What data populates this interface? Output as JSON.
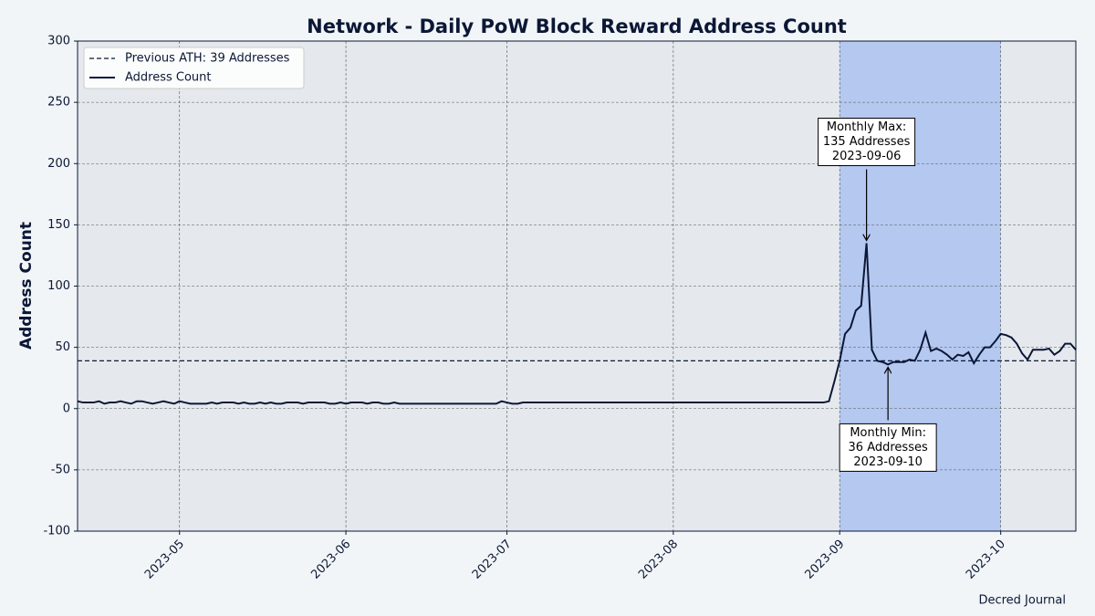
{
  "chart_data": {
    "type": "line",
    "title": "Network - Daily PoW Block Reward Address Count",
    "ylabel": "Address Count",
    "footer": "Decred Journal",
    "x": [
      "2023-04-12",
      "2023-04-13",
      "2023-04-14",
      "2023-04-15",
      "2023-04-16",
      "2023-04-17",
      "2023-04-18",
      "2023-04-19",
      "2023-04-20",
      "2023-04-21",
      "2023-04-22",
      "2023-04-23",
      "2023-04-24",
      "2023-04-25",
      "2023-04-26",
      "2023-04-27",
      "2023-04-28",
      "2023-04-29",
      "2023-04-30",
      "2023-05-01",
      "2023-05-02",
      "2023-05-03",
      "2023-05-04",
      "2023-05-05",
      "2023-05-06",
      "2023-05-07",
      "2023-05-08",
      "2023-05-09",
      "2023-05-10",
      "2023-05-11",
      "2023-05-12",
      "2023-05-13",
      "2023-05-14",
      "2023-05-15",
      "2023-05-16",
      "2023-05-17",
      "2023-05-18",
      "2023-05-19",
      "2023-05-20",
      "2023-05-21",
      "2023-05-22",
      "2023-05-23",
      "2023-05-24",
      "2023-05-25",
      "2023-05-26",
      "2023-05-27",
      "2023-05-28",
      "2023-05-29",
      "2023-05-30",
      "2023-05-31",
      "2023-06-01",
      "2023-06-02",
      "2023-06-03",
      "2023-06-04",
      "2023-06-05",
      "2023-06-06",
      "2023-06-07",
      "2023-06-08",
      "2023-06-09",
      "2023-06-10",
      "2023-06-11",
      "2023-06-12",
      "2023-06-13",
      "2023-06-14",
      "2023-06-15",
      "2023-06-16",
      "2023-06-17",
      "2023-06-18",
      "2023-06-19",
      "2023-06-20",
      "2023-06-21",
      "2023-06-22",
      "2023-06-23",
      "2023-06-24",
      "2023-06-25",
      "2023-06-26",
      "2023-06-27",
      "2023-06-28",
      "2023-06-29",
      "2023-06-30",
      "2023-07-01",
      "2023-07-02",
      "2023-07-03",
      "2023-07-04",
      "2023-07-05",
      "2023-07-06",
      "2023-07-07",
      "2023-07-08",
      "2023-07-09",
      "2023-07-10",
      "2023-07-11",
      "2023-07-12",
      "2023-07-13",
      "2023-07-14",
      "2023-07-15",
      "2023-07-16",
      "2023-07-17",
      "2023-07-18",
      "2023-07-19",
      "2023-07-20",
      "2023-07-21",
      "2023-07-22",
      "2023-07-23",
      "2023-07-24",
      "2023-07-25",
      "2023-07-26",
      "2023-07-27",
      "2023-07-28",
      "2023-07-29",
      "2023-07-30",
      "2023-07-31",
      "2023-08-01",
      "2023-08-02",
      "2023-08-03",
      "2023-08-04",
      "2023-08-05",
      "2023-08-06",
      "2023-08-07",
      "2023-08-08",
      "2023-08-09",
      "2023-08-10",
      "2023-08-11",
      "2023-08-12",
      "2023-08-13",
      "2023-08-14",
      "2023-08-15",
      "2023-08-16",
      "2023-08-17",
      "2023-08-18",
      "2023-08-19",
      "2023-08-20",
      "2023-08-21",
      "2023-08-22",
      "2023-08-23",
      "2023-08-24",
      "2023-08-25",
      "2023-08-26",
      "2023-08-27",
      "2023-08-28",
      "2023-08-29",
      "2023-08-30",
      "2023-08-31",
      "2023-09-01",
      "2023-09-02",
      "2023-09-03",
      "2023-09-04",
      "2023-09-05",
      "2023-09-06",
      "2023-09-07",
      "2023-09-08",
      "2023-09-09",
      "2023-09-10",
      "2023-09-11",
      "2023-09-12",
      "2023-09-13",
      "2023-09-14",
      "2023-09-15",
      "2023-09-16",
      "2023-09-17",
      "2023-09-18",
      "2023-09-19",
      "2023-09-20",
      "2023-09-21",
      "2023-09-22",
      "2023-09-23",
      "2023-09-24",
      "2023-09-25",
      "2023-09-26",
      "2023-09-27",
      "2023-09-28",
      "2023-09-29",
      "2023-09-30",
      "2023-10-01",
      "2023-10-02",
      "2023-10-03",
      "2023-10-04",
      "2023-10-05",
      "2023-10-06",
      "2023-10-07",
      "2023-10-08",
      "2023-10-09",
      "2023-10-10",
      "2023-10-11",
      "2023-10-12",
      "2023-10-13",
      "2023-10-14",
      "2023-10-15"
    ],
    "series": [
      {
        "name": "Address Count",
        "color": "#0b1736",
        "values": [
          6,
          5,
          5,
          5,
          6,
          4,
          5,
          5,
          6,
          5,
          4,
          6,
          6,
          5,
          4,
          5,
          6,
          5,
          4,
          6,
          5,
          4,
          4,
          4,
          4,
          5,
          4,
          5,
          5,
          5,
          4,
          5,
          4,
          4,
          5,
          4,
          5,
          4,
          4,
          5,
          5,
          5,
          4,
          5,
          5,
          5,
          5,
          4,
          4,
          5,
          4,
          5,
          5,
          5,
          4,
          5,
          5,
          4,
          4,
          5,
          4,
          4,
          4,
          4,
          4,
          4,
          4,
          4,
          4,
          4,
          4,
          4,
          4,
          4,
          4,
          4,
          4,
          4,
          4,
          6,
          5,
          4,
          4,
          5,
          5,
          5,
          5,
          5,
          5,
          5,
          5,
          5,
          5,
          5,
          5,
          5,
          5,
          5,
          5,
          5,
          5,
          5,
          5,
          5,
          5,
          5,
          5,
          5,
          5,
          5,
          5,
          5,
          5,
          5,
          5,
          5,
          5,
          5,
          5,
          5,
          5,
          5,
          5,
          5,
          5,
          5,
          5,
          5,
          5,
          5,
          5,
          5,
          5,
          5,
          5,
          5,
          5,
          5,
          5,
          5,
          6,
          22,
          39,
          61,
          66,
          80,
          84,
          135,
          48,
          39,
          38,
          36,
          38,
          38,
          38,
          40,
          39,
          48,
          62,
          47,
          49,
          47,
          44,
          40,
          44,
          43,
          46,
          37,
          44,
          50,
          50,
          55,
          61,
          60,
          58,
          53,
          45,
          40,
          48,
          48,
          48,
          49,
          44,
          47,
          53,
          53,
          48
        ]
      }
    ],
    "reference_line": {
      "name": "Previous ATH: 39 Addresses",
      "value": 39,
      "color": "#0b1736",
      "style": "dashed"
    },
    "highlight_span": {
      "x": [
        "2023-09-01",
        "2023-10-01"
      ],
      "color": "#b4c8f0"
    },
    "annotations": [
      {
        "lines": [
          "Monthly Max:",
          "135 Addresses",
          "2023-09-06"
        ],
        "x": "2023-09-06",
        "y": 135
      },
      {
        "lines": [
          "Monthly Min:",
          "36 Addresses",
          "2023-09-10"
        ],
        "x": "2023-09-10",
        "y": 36
      }
    ],
    "xlim": [
      "2023-04-12",
      "2023-10-15"
    ],
    "xticks": [
      "2023-05",
      "2023-06",
      "2023-07",
      "2023-08",
      "2023-09",
      "2023-10"
    ],
    "ylim": [
      -100,
      300
    ],
    "yticks": [
      -100,
      -50,
      0,
      50,
      100,
      150,
      200,
      250,
      300
    ],
    "grid": true,
    "legend": "upper left"
  }
}
